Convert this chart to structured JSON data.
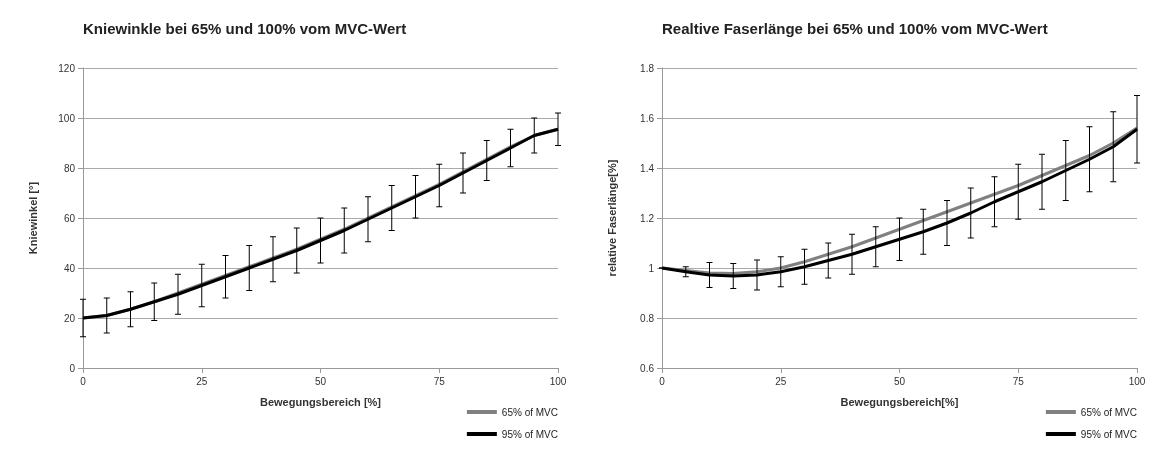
{
  "chart_data": [
    {
      "type": "line",
      "title": "Kniewinkle bei 65% und 100% vom MVC-Wert",
      "xlabel": "Bewegungsbereich [%]",
      "ylabel": "Kniewinkel [°]",
      "x": [
        0,
        5,
        10,
        15,
        20,
        25,
        30,
        35,
        40,
        45,
        50,
        55,
        60,
        65,
        70,
        75,
        80,
        85,
        90,
        95,
        100
      ],
      "xlim": [
        0,
        100
      ],
      "xticks": [
        0,
        25,
        50,
        75,
        100
      ],
      "ylim": [
        0,
        120
      ],
      "yticks": [
        0,
        20,
        40,
        60,
        80,
        100,
        120
      ],
      "grid": "y",
      "legend": "bottom right",
      "marker": "none",
      "series": [
        {
          "name": "65% of MVC",
          "color": "#808080",
          "values": [
            20,
            21,
            23.5,
            26.5,
            30,
            33.5,
            37,
            40.5,
            44,
            47.5,
            51.5,
            55.5,
            60,
            64.5,
            69,
            73.5,
            78.5,
            83.5,
            88.5,
            93,
            95.5
          ]
        },
        {
          "name": "95% of MVC",
          "color": "#000000",
          "values": [
            20,
            21,
            23.5,
            26.5,
            29.5,
            33,
            36.5,
            40,
            43.5,
            47,
            51,
            55,
            59.5,
            64,
            68.5,
            73,
            78,
            83,
            88,
            93,
            95.5
          ],
          "errors": [
            7.5,
            7,
            7,
            7.5,
            8,
            8.5,
            8.5,
            9,
            9,
            9,
            9,
            9,
            9,
            9,
            8.5,
            8.5,
            8,
            8,
            7.5,
            7,
            6.5
          ]
        }
      ]
    },
    {
      "type": "line",
      "title": "Realtive Faserlänge bei 65% und 100% vom MVC-Wert",
      "xlabel": "Bewegungsbereich[%]",
      "ylabel": "relative Faserlänge[%]",
      "x": [
        0,
        5,
        10,
        15,
        20,
        25,
        30,
        35,
        40,
        45,
        50,
        55,
        60,
        65,
        70,
        75,
        80,
        85,
        90,
        95,
        100
      ],
      "xlim": [
        0,
        100
      ],
      "xticks": [
        0,
        25,
        50,
        75,
        100
      ],
      "ylim": [
        0.6,
        1.8
      ],
      "yticks": [
        0.6,
        0.8,
        1,
        1.2,
        1.4,
        1.6,
        1.8
      ],
      "grid": "y",
      "legend": "bottom right",
      "marker": "none",
      "series": [
        {
          "name": "65% of MVC",
          "color": "#808080",
          "values": [
            1.0,
            0.99,
            0.98,
            0.978,
            0.985,
            1.0,
            1.025,
            1.055,
            1.085,
            1.12,
            1.155,
            1.19,
            1.225,
            1.26,
            1.295,
            1.33,
            1.37,
            1.41,
            1.45,
            1.5,
            1.56
          ]
        },
        {
          "name": "95% of MVC",
          "color": "#000000",
          "values": [
            1.0,
            0.985,
            0.972,
            0.968,
            0.972,
            0.985,
            1.005,
            1.03,
            1.055,
            1.085,
            1.115,
            1.145,
            1.18,
            1.22,
            1.265,
            1.305,
            1.345,
            1.39,
            1.435,
            1.485,
            1.555
          ],
          "errors": [
            0,
            0.02,
            0.05,
            0.05,
            0.06,
            0.06,
            0.07,
            0.07,
            0.08,
            0.08,
            0.085,
            0.09,
            0.09,
            0.1,
            0.1,
            0.11,
            0.11,
            0.12,
            0.13,
            0.14,
            0.135
          ]
        }
      ]
    }
  ]
}
